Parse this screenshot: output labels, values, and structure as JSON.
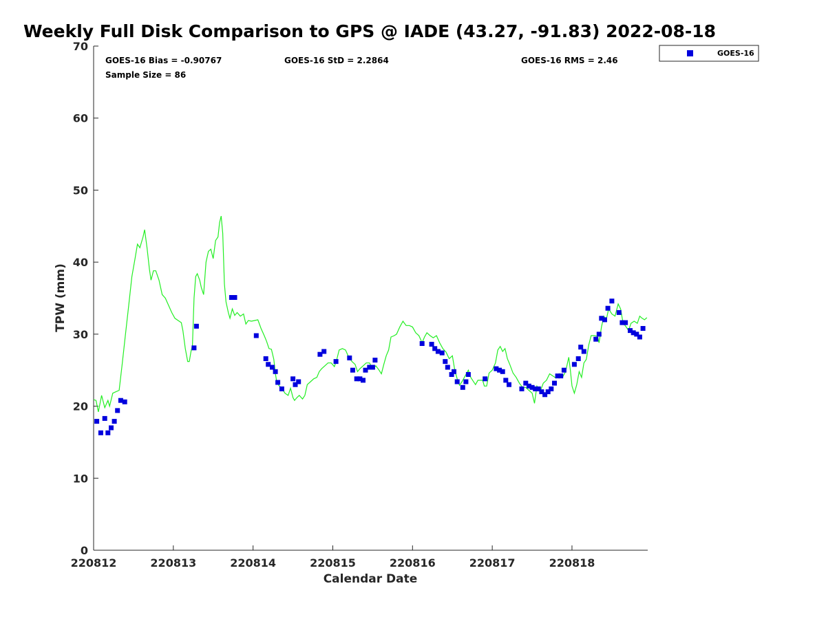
{
  "chart_data": {
    "type": "scatter",
    "title": "Weekly Full Disk Comparison to GPS @ IADE (43.27, -91.83) 2022-08-18",
    "xlabel": "Calendar Date",
    "ylabel": "TPW (mm)",
    "xlim": [
      0,
      6.95
    ],
    "ylim": [
      0,
      70
    ],
    "x_ticks": [
      0,
      1,
      2,
      3,
      4,
      5,
      6
    ],
    "x_tick_labels": [
      "220812",
      "220813",
      "220814",
      "220815",
      "220816",
      "220817",
      "220818"
    ],
    "y_ticks": [
      0,
      10,
      20,
      30,
      40,
      50,
      60,
      70
    ],
    "y_tick_labels": [
      "0",
      "10",
      "20",
      "30",
      "40",
      "50",
      "60",
      "70"
    ],
    "grid": false,
    "legend_position": "top-right, outside plot",
    "stats": {
      "bias": "GOES-16 Bias = -0.90767",
      "std": "GOES-16 StD = 2.2864",
      "rms": "GOES-16 RMS = 2.46",
      "sample": "Sample Size = 86"
    },
    "series": [
      {
        "name": "GOES-16",
        "type": "scatter",
        "color": "#0000dd",
        "marker": "square",
        "points": [
          [
            0.04,
            17.9
          ],
          [
            0.09,
            16.3
          ],
          [
            0.14,
            18.3
          ],
          [
            0.18,
            16.3
          ],
          [
            0.22,
            17.0
          ],
          [
            0.26,
            17.9
          ],
          [
            0.3,
            19.4
          ],
          [
            0.34,
            20.8
          ],
          [
            0.39,
            20.6
          ],
          [
            1.26,
            28.1
          ],
          [
            1.29,
            31.1
          ],
          [
            1.73,
            35.1
          ],
          [
            1.77,
            35.1
          ],
          [
            2.04,
            29.8
          ],
          [
            2.16,
            26.6
          ],
          [
            2.19,
            25.8
          ],
          [
            2.24,
            25.4
          ],
          [
            2.28,
            24.8
          ],
          [
            2.31,
            23.3
          ],
          [
            2.36,
            22.4
          ],
          [
            2.5,
            23.8
          ],
          [
            2.53,
            23.0
          ],
          [
            2.57,
            23.4
          ],
          [
            2.84,
            27.2
          ],
          [
            2.89,
            27.6
          ],
          [
            3.04,
            26.2
          ],
          [
            3.21,
            26.7
          ],
          [
            3.25,
            25.0
          ],
          [
            3.3,
            23.8
          ],
          [
            3.34,
            23.8
          ],
          [
            3.38,
            23.6
          ],
          [
            3.41,
            25.0
          ],
          [
            3.46,
            25.4
          ],
          [
            3.5,
            25.4
          ],
          [
            3.53,
            26.4
          ],
          [
            4.12,
            28.7
          ],
          [
            4.24,
            28.6
          ],
          [
            4.28,
            28.0
          ],
          [
            4.32,
            27.6
          ],
          [
            4.37,
            27.4
          ],
          [
            4.41,
            26.2
          ],
          [
            4.44,
            25.4
          ],
          [
            4.49,
            24.4
          ],
          [
            4.52,
            24.8
          ],
          [
            4.56,
            23.4
          ],
          [
            4.63,
            22.6
          ],
          [
            4.67,
            23.4
          ],
          [
            4.7,
            24.4
          ],
          [
            4.91,
            23.8
          ],
          [
            5.05,
            25.2
          ],
          [
            5.09,
            25.0
          ],
          [
            5.13,
            24.8
          ],
          [
            5.17,
            23.6
          ],
          [
            5.21,
            23.0
          ],
          [
            5.37,
            22.4
          ],
          [
            5.42,
            23.2
          ],
          [
            5.46,
            22.8
          ],
          [
            5.5,
            22.6
          ],
          [
            5.54,
            22.4
          ],
          [
            5.58,
            22.4
          ],
          [
            5.62,
            22.0
          ],
          [
            5.66,
            21.6
          ],
          [
            5.7,
            22.0
          ],
          [
            5.74,
            22.4
          ],
          [
            5.78,
            23.2
          ],
          [
            5.82,
            24.2
          ],
          [
            5.86,
            24.2
          ],
          [
            5.9,
            25.0
          ],
          [
            6.03,
            25.8
          ],
          [
            6.08,
            26.6
          ],
          [
            6.11,
            28.2
          ],
          [
            6.15,
            27.6
          ],
          [
            6.3,
            29.3
          ],
          [
            6.34,
            30.0
          ],
          [
            6.37,
            32.2
          ],
          [
            6.41,
            32.0
          ],
          [
            6.45,
            33.6
          ],
          [
            6.5,
            34.6
          ],
          [
            6.59,
            33.0
          ],
          [
            6.63,
            31.6
          ],
          [
            6.67,
            31.6
          ],
          [
            6.73,
            30.5
          ],
          [
            6.77,
            30.2
          ],
          [
            6.81,
            30.0
          ],
          [
            6.85,
            29.6
          ],
          [
            6.89,
            30.8
          ]
        ]
      },
      {
        "type": "line",
        "color": "#22ee22",
        "points": [
          [
            0.0,
            20.9
          ],
          [
            0.03,
            20.8
          ],
          [
            0.06,
            19.2
          ],
          [
            0.1,
            21.5
          ],
          [
            0.14,
            19.8
          ],
          [
            0.18,
            20.8
          ],
          [
            0.2,
            20.0
          ],
          [
            0.24,
            21.8
          ],
          [
            0.28,
            22.0
          ],
          [
            0.32,
            22.2
          ],
          [
            0.36,
            26.0
          ],
          [
            0.4,
            30.0
          ],
          [
            0.44,
            34.0
          ],
          [
            0.48,
            38.0
          ],
          [
            0.52,
            40.5
          ],
          [
            0.55,
            42.5
          ],
          [
            0.58,
            42.0
          ],
          [
            0.62,
            43.5
          ],
          [
            0.64,
            44.5
          ],
          [
            0.67,
            42.0
          ],
          [
            0.7,
            39.0
          ],
          [
            0.72,
            37.5
          ],
          [
            0.75,
            38.8
          ],
          [
            0.78,
            38.8
          ],
          [
            0.82,
            37.5
          ],
          [
            0.86,
            35.5
          ],
          [
            0.9,
            35.0
          ],
          [
            0.94,
            34.0
          ],
          [
            0.98,
            33.0
          ],
          [
            1.02,
            32.2
          ],
          [
            1.06,
            31.9
          ],
          [
            1.1,
            31.6
          ],
          [
            1.12,
            30.5
          ],
          [
            1.15,
            28.0
          ],
          [
            1.18,
            26.2
          ],
          [
            1.2,
            26.2
          ],
          [
            1.22,
            27.5
          ],
          [
            1.24,
            28.5
          ],
          [
            1.26,
            35.0
          ],
          [
            1.28,
            38.0
          ],
          [
            1.3,
            38.4
          ],
          [
            1.33,
            37.5
          ],
          [
            1.35,
            36.5
          ],
          [
            1.38,
            35.5
          ],
          [
            1.41,
            40.0
          ],
          [
            1.44,
            41.5
          ],
          [
            1.47,
            41.8
          ],
          [
            1.5,
            40.5
          ],
          [
            1.53,
            43.0
          ],
          [
            1.56,
            43.5
          ],
          [
            1.58,
            45.5
          ],
          [
            1.6,
            46.4
          ],
          [
            1.62,
            44.0
          ],
          [
            1.64,
            37.0
          ],
          [
            1.66,
            34.5
          ],
          [
            1.69,
            33.0
          ],
          [
            1.71,
            32.2
          ],
          [
            1.74,
            33.5
          ],
          [
            1.77,
            32.6
          ],
          [
            1.8,
            33.0
          ],
          [
            1.84,
            32.5
          ],
          [
            1.88,
            32.8
          ],
          [
            1.91,
            31.4
          ],
          [
            1.94,
            31.9
          ],
          [
            1.98,
            31.8
          ],
          [
            2.02,
            31.9
          ],
          [
            2.06,
            32.0
          ],
          [
            2.1,
            30.8
          ],
          [
            2.14,
            29.8
          ],
          [
            2.17,
            29.0
          ],
          [
            2.2,
            28.0
          ],
          [
            2.23,
            27.9
          ],
          [
            2.26,
            26.5
          ],
          [
            2.28,
            24.5
          ],
          [
            2.3,
            23.2
          ],
          [
            2.33,
            22.8
          ],
          [
            2.36,
            22.5
          ],
          [
            2.4,
            21.8
          ],
          [
            2.44,
            21.5
          ],
          [
            2.47,
            22.5
          ],
          [
            2.5,
            21.2
          ],
          [
            2.52,
            20.8
          ],
          [
            2.55,
            21.2
          ],
          [
            2.58,
            21.5
          ],
          [
            2.62,
            21.0
          ],
          [
            2.65,
            21.5
          ],
          [
            2.68,
            23.0
          ],
          [
            2.72,
            23.4
          ],
          [
            2.76,
            23.8
          ],
          [
            2.8,
            24.0
          ],
          [
            2.83,
            24.8
          ],
          [
            2.86,
            25.2
          ],
          [
            2.9,
            25.6
          ],
          [
            2.94,
            26.0
          ],
          [
            2.98,
            26.0
          ],
          [
            3.02,
            25.5
          ],
          [
            3.05,
            26.5
          ],
          [
            3.08,
            27.8
          ],
          [
            3.12,
            28.0
          ],
          [
            3.16,
            27.8
          ],
          [
            3.2,
            26.8
          ],
          [
            3.24,
            26.2
          ],
          [
            3.28,
            25.8
          ],
          [
            3.31,
            24.8
          ],
          [
            3.34,
            25.2
          ],
          [
            3.38,
            25.6
          ],
          [
            3.42,
            26.0
          ],
          [
            3.46,
            26.0
          ],
          [
            3.5,
            25.2
          ],
          [
            3.54,
            25.6
          ],
          [
            3.58,
            25.0
          ],
          [
            3.61,
            24.5
          ],
          [
            3.64,
            25.8
          ],
          [
            3.67,
            27.0
          ],
          [
            3.7,
            27.8
          ],
          [
            3.73,
            29.6
          ],
          [
            3.77,
            29.8
          ],
          [
            3.8,
            30.0
          ],
          [
            3.84,
            31.0
          ],
          [
            3.88,
            31.8
          ],
          [
            3.92,
            31.2
          ],
          [
            3.96,
            31.2
          ],
          [
            4.0,
            31.0
          ],
          [
            4.04,
            30.2
          ],
          [
            4.08,
            29.8
          ],
          [
            4.12,
            28.8
          ],
          [
            4.15,
            29.6
          ],
          [
            4.18,
            30.2
          ],
          [
            4.22,
            29.8
          ],
          [
            4.26,
            29.5
          ],
          [
            4.3,
            29.8
          ],
          [
            4.34,
            28.8
          ],
          [
            4.38,
            28.0
          ],
          [
            4.42,
            27.5
          ],
          [
            4.46,
            26.6
          ],
          [
            4.5,
            27.0
          ],
          [
            4.53,
            25.0
          ],
          [
            4.56,
            23.8
          ],
          [
            4.59,
            22.9
          ],
          [
            4.62,
            23.4
          ],
          [
            4.66,
            24.2
          ],
          [
            4.7,
            25.0
          ],
          [
            4.73,
            24.0
          ],
          [
            4.76,
            23.5
          ],
          [
            4.79,
            23.0
          ],
          [
            4.82,
            23.6
          ],
          [
            4.86,
            23.6
          ],
          [
            4.88,
            23.6
          ],
          [
            4.9,
            22.8
          ],
          [
            4.93,
            22.8
          ],
          [
            4.96,
            24.6
          ],
          [
            5.0,
            25.0
          ],
          [
            5.04,
            26.0
          ],
          [
            5.07,
            27.8
          ],
          [
            5.1,
            28.3
          ],
          [
            5.13,
            27.6
          ],
          [
            5.16,
            28.0
          ],
          [
            5.19,
            26.6
          ],
          [
            5.22,
            25.8
          ],
          [
            5.26,
            24.6
          ],
          [
            5.3,
            24.0
          ],
          [
            5.34,
            23.2
          ],
          [
            5.38,
            22.6
          ],
          [
            5.42,
            22.6
          ],
          [
            5.46,
            22.2
          ],
          [
            5.5,
            21.8
          ],
          [
            5.53,
            20.4
          ],
          [
            5.56,
            22.8
          ],
          [
            5.6,
            22.0
          ],
          [
            5.64,
            23.2
          ],
          [
            5.68,
            23.6
          ],
          [
            5.72,
            24.5
          ],
          [
            5.76,
            24.2
          ],
          [
            5.8,
            23.9
          ],
          [
            5.84,
            24.5
          ],
          [
            5.88,
            24.0
          ],
          [
            5.92,
            24.8
          ],
          [
            5.96,
            26.8
          ],
          [
            5.98,
            25.0
          ],
          [
            6.0,
            22.8
          ],
          [
            6.03,
            21.8
          ],
          [
            6.06,
            23.0
          ],
          [
            6.09,
            24.8
          ],
          [
            6.12,
            24.0
          ],
          [
            6.15,
            26.0
          ],
          [
            6.18,
            26.5
          ],
          [
            6.21,
            28.5
          ],
          [
            6.24,
            29.8
          ],
          [
            6.28,
            29.8
          ],
          [
            6.32,
            29.7
          ],
          [
            6.34,
            28.8
          ],
          [
            6.37,
            31.0
          ],
          [
            6.4,
            32.5
          ],
          [
            6.43,
            32.0
          ],
          [
            6.46,
            33.5
          ],
          [
            6.5,
            32.8
          ],
          [
            6.54,
            32.5
          ],
          [
            6.58,
            34.2
          ],
          [
            6.61,
            33.5
          ],
          [
            6.64,
            31.6
          ],
          [
            6.68,
            31.0
          ],
          [
            6.71,
            30.5
          ],
          [
            6.74,
            31.5
          ],
          [
            6.78,
            31.8
          ],
          [
            6.82,
            31.5
          ],
          [
            6.85,
            32.5
          ],
          [
            6.88,
            32.2
          ],
          [
            6.91,
            32.0
          ],
          [
            6.94,
            32.3
          ]
        ]
      }
    ]
  }
}
